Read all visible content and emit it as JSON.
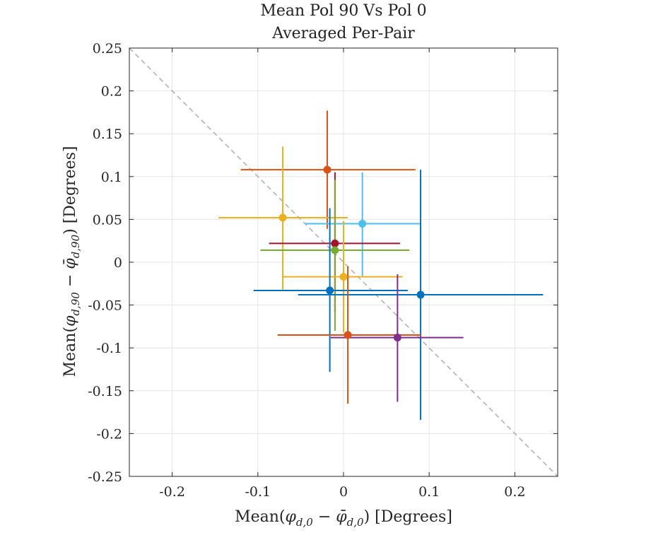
{
  "chart_data": {
    "type": "scatter",
    "title": [
      "Mean Pol 90 Vs Pol 0",
      "Averaged Per-Pair"
    ],
    "xlabel": {
      "prefix": "Mean(",
      "phi": "φ",
      "sub1": "d,0",
      "minus": " − ",
      "phibar": "φ̄",
      "sub2": "d,0",
      "suffix": ") [Degrees]"
    },
    "ylabel": {
      "prefix": "Mean(",
      "phi": "φ",
      "sub1": "d,90",
      "minus": " − ",
      "phibar": "φ̄",
      "sub2": "d,90",
      "suffix": ") [Degrees]"
    },
    "xlim": [
      -0.25,
      0.25
    ],
    "ylim": [
      -0.25,
      0.25
    ],
    "x_ticks": [
      -0.2,
      -0.1,
      0,
      0.1,
      0.2
    ],
    "x_tick_labels": [
      "-0.2",
      "-0.1",
      "0",
      "0.1",
      "0.2"
    ],
    "y_ticks": [
      -0.25,
      -0.2,
      -0.15,
      -0.1,
      -0.05,
      0,
      0.05,
      0.1,
      0.15,
      0.2,
      0.25
    ],
    "y_tick_labels": [
      "-0.25",
      "-0.2",
      "-0.15",
      "-0.1",
      "-0.05",
      "0",
      "0.05",
      "0.1",
      "0.15",
      "0.2",
      "0.25"
    ],
    "grid": true,
    "reference_line": {
      "x": [
        -0.25,
        0.25
      ],
      "y": [
        0.25,
        -0.25
      ],
      "style": "dashed",
      "color": "#b3b3b3"
    },
    "points": [
      {
        "x": -0.019,
        "y": 0.108,
        "xmin": -0.12,
        "xmax": 0.084,
        "ymin": 0.039,
        "ymax": 0.177,
        "color": "#D95319"
      },
      {
        "x": -0.071,
        "y": 0.052,
        "xmin": -0.146,
        "xmax": 0.005,
        "ymin": -0.032,
        "ymax": 0.135,
        "color": "#EDB120"
      },
      {
        "x": 0.022,
        "y": 0.045,
        "xmin": -0.045,
        "xmax": 0.09,
        "ymin": -0.016,
        "ymax": 0.105,
        "color": "#4DBEEE"
      },
      {
        "x": -0.01,
        "y": 0.022,
        "xmin": -0.087,
        "xmax": 0.066,
        "ymin": -0.058,
        "ymax": 0.105,
        "color": "#A2142F"
      },
      {
        "x": -0.01,
        "y": 0.014,
        "xmin": -0.097,
        "xmax": 0.077,
        "ymin": -0.08,
        "ymax": 0.096,
        "color": "#77AC30"
      },
      {
        "x": 0.0,
        "y": -0.017,
        "xmin": -0.071,
        "xmax": 0.069,
        "ymin": -0.082,
        "ymax": 0.048,
        "color": "#EDB120"
      },
      {
        "x": -0.016,
        "y": -0.033,
        "xmin": -0.105,
        "xmax": 0.075,
        "ymin": -0.128,
        "ymax": 0.063,
        "color": "#0072BD"
      },
      {
        "x": 0.09,
        "y": -0.038,
        "xmin": -0.053,
        "xmax": 0.233,
        "ymin": -0.184,
        "ymax": 0.108,
        "color": "#0072BD"
      },
      {
        "x": 0.005,
        "y": -0.085,
        "xmin": -0.077,
        "xmax": 0.09,
        "ymin": -0.165,
        "ymax": -0.005,
        "color": "#D95319"
      },
      {
        "x": 0.063,
        "y": -0.088,
        "xmin": -0.015,
        "xmax": 0.14,
        "ymin": -0.163,
        "ymax": -0.014,
        "color": "#7E2F8E"
      }
    ]
  }
}
